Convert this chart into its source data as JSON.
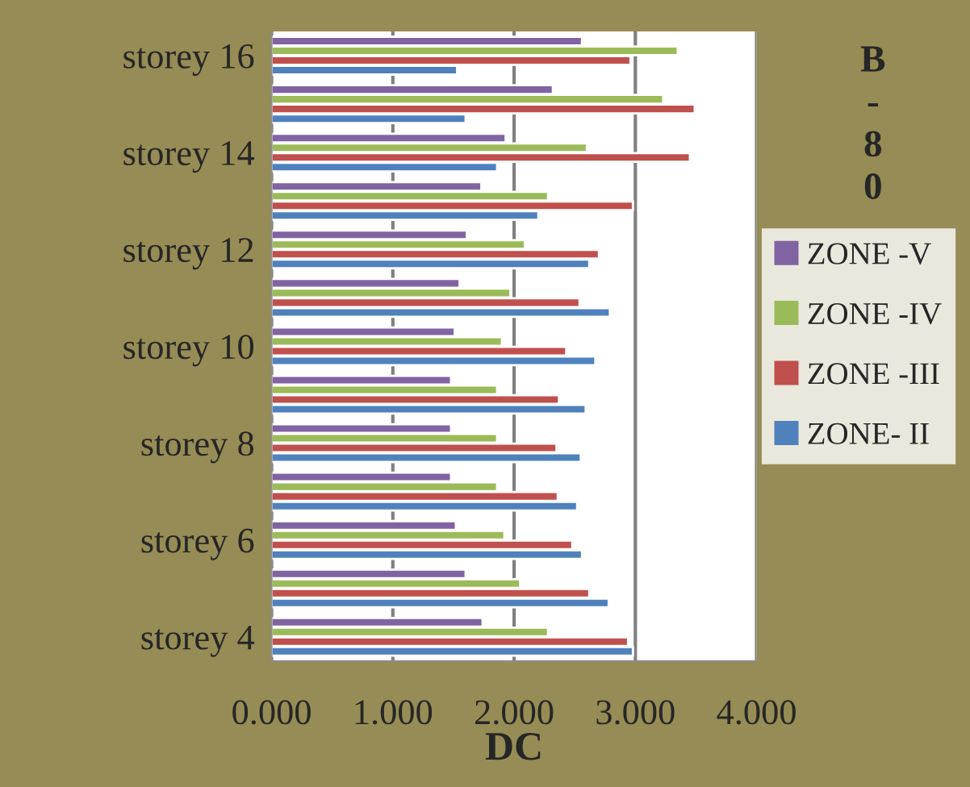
{
  "chart_data": {
    "type": "bar",
    "orientation": "horizontal",
    "xlabel": "DC",
    "categories": [
      "storey 16",
      null,
      "storey 14",
      null,
      "storey 12",
      null,
      "storey 10",
      null,
      "storey 8",
      null,
      "storey 6",
      null,
      "storey 4"
    ],
    "series": [
      {
        "name": "ZONE -V",
        "color": "#8064a2",
        "values": [
          2.56,
          2.32,
          1.93,
          1.73,
          1.61,
          1.55,
          1.51,
          1.48,
          1.48,
          1.48,
          1.52,
          1.6,
          1.74
        ]
      },
      {
        "name": "ZONE -IV",
        "color": "#9bbb59",
        "values": [
          3.35,
          3.23,
          2.6,
          2.28,
          2.09,
          1.97,
          1.9,
          1.86,
          1.86,
          1.86,
          1.92,
          2.05,
          2.28
        ]
      },
      {
        "name": "ZONE -III",
        "color": "#c0504d",
        "values": [
          2.96,
          3.49,
          3.45,
          2.98,
          2.7,
          2.54,
          2.43,
          2.37,
          2.35,
          2.36,
          2.48,
          2.62,
          2.94
        ]
      },
      {
        "name": "ZONE- II",
        "color": "#4f81bd",
        "values": [
          1.53,
          1.6,
          1.86,
          2.2,
          2.62,
          2.79,
          2.67,
          2.59,
          2.55,
          2.52,
          2.56,
          2.78,
          2.98
        ]
      }
    ],
    "xlim": [
      0,
      4
    ],
    "xticks": [
      {
        "value": 0,
        "label": "0.000"
      },
      {
        "value": 1,
        "label": "1.000"
      },
      {
        "value": 2,
        "label": "2.000"
      },
      {
        "value": 3,
        "label": "3.000"
      },
      {
        "value": 4,
        "label": "4.000"
      }
    ],
    "grid": "x",
    "legend": "right",
    "annotations": [
      "B-80"
    ]
  }
}
